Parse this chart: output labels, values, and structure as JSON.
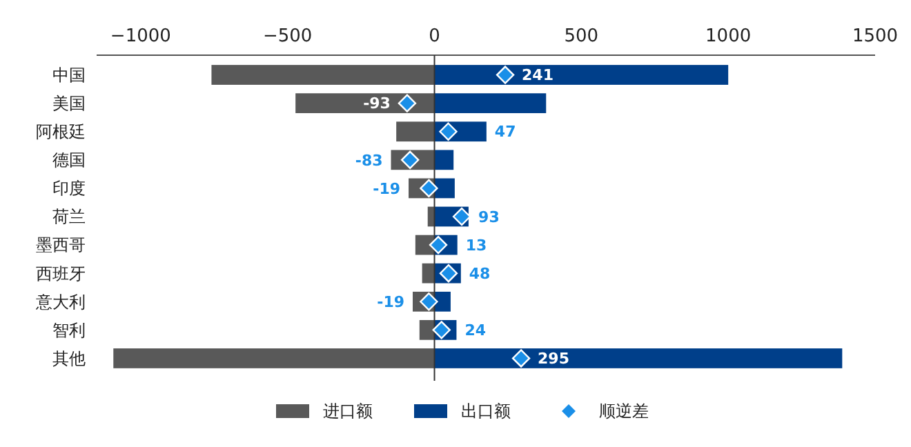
{
  "chart_data": {
    "type": "bar",
    "orientation": "horizontal",
    "categories": [
      "中国",
      "美国",
      "阿根廷",
      "德国",
      "印度",
      "荷兰",
      "墨西哥",
      "西班牙",
      "意大利",
      "智利",
      "其他"
    ],
    "series": [
      {
        "name": "进口额",
        "color": "#595959",
        "values": [
          -759,
          -473,
          -130,
          -148,
          -88,
          -23,
          -65,
          -42,
          -74,
          -51,
          -1093
        ]
      },
      {
        "name": "出口额",
        "color": "#003f8a",
        "values": [
          1000,
          380,
          177,
          65,
          69,
          116,
          78,
          90,
          55,
          75,
          1388
        ]
      },
      {
        "name": "顺逆差",
        "type": "scatter",
        "color": "#1a8fe8",
        "marker": "diamond",
        "values": [
          241,
          -93,
          47,
          -83,
          -19,
          93,
          13,
          48,
          -19,
          24,
          295
        ],
        "value_labels": [
          "241",
          "-93",
          "47",
          "-83",
          "-19",
          "93",
          "13",
          "48",
          "-19",
          "24",
          "295"
        ]
      }
    ],
    "xlim": [
      -1150,
      1500
    ],
    "xticks": [
      {
        "value": -1000,
        "label": "−1000"
      },
      {
        "value": -500,
        "label": "−500"
      },
      0,
      500,
      1000,
      1500
    ],
    "stacked": true,
    "ref_lines": [
      {
        "axis": "x",
        "value": 0
      }
    ],
    "legend": "bottom"
  }
}
